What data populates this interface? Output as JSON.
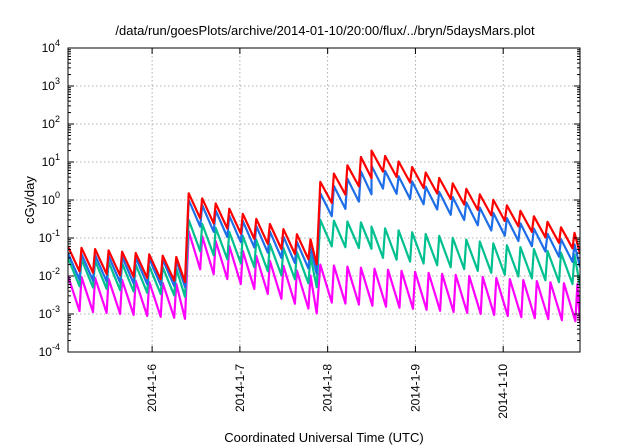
{
  "chart_data": {
    "type": "line",
    "title": "/data/run/goesPlots/archive/2014-01-10/20:00/flux/../bryn/5daysMars.plot",
    "xlabel": "Coordinated Universal Time (UTC)",
    "ylabel": "cGy/day",
    "yscale": "log",
    "ylim": [
      0.0001,
      10000
    ],
    "xlim": [
      "2014-01-05 01:00",
      "2014-01-10 21:00"
    ],
    "y_ticks": [
      {
        "base": "10",
        "exp": "-4"
      },
      {
        "base": "10",
        "exp": "-3"
      },
      {
        "base": "10",
        "exp": "-2"
      },
      {
        "base": "10",
        "exp": "-1"
      },
      {
        "base": "10",
        "exp": "0"
      },
      {
        "base": "10",
        "exp": "1"
      },
      {
        "base": "10",
        "exp": "2"
      },
      {
        "base": "10",
        "exp": "3"
      },
      {
        "base": "10",
        "exp": "4"
      }
    ],
    "x_ticks": [
      {
        "label": "2014-1-6",
        "time": "2014-01-06 00:00"
      },
      {
        "label": "2014-1-7",
        "time": "2014-01-07 00:00"
      },
      {
        "label": "2014-1-8",
        "time": "2014-01-08 00:00"
      },
      {
        "label": "2014-1-9",
        "time": "2014-01-09 00:00"
      },
      {
        "label": "2014-1-10",
        "time": "2014-01-10 00:00"
      }
    ],
    "grid": true,
    "legend": "none",
    "oscillation_period_hours": 3.7,
    "series": [
      {
        "color": "#ff00ff",
        "segments": [
          {
            "from": "2014-01-05 01:00",
            "to": "2014-01-06 09:00",
            "peak_start": 0.01,
            "peak_end": 0.006,
            "trough_ratio": 0.12
          },
          {
            "from": "2014-01-06 10:00",
            "to": "2014-01-07 21:00",
            "peak_start": 0.15,
            "peak_end": 0.009,
            "trough_ratio": 0.1
          },
          {
            "from": "2014-01-07 22:00",
            "to": "2014-01-10 21:00",
            "peak_start": 0.02,
            "peak_end": 0.006,
            "trough_ratio": 0.1
          }
        ]
      },
      {
        "color": "#00c090",
        "segments": [
          {
            "from": "2014-01-05 01:00",
            "to": "2014-01-06 09:00",
            "peak_start": 0.03,
            "peak_end": 0.015,
            "trough_ratio": 0.18
          },
          {
            "from": "2014-01-06 10:00",
            "to": "2014-01-07 21:00",
            "peak_start": 0.3,
            "peak_end": 0.03,
            "trough_ratio": 0.15
          },
          {
            "from": "2014-01-07 22:00",
            "to": "2014-01-08 12:00",
            "peak_start": 0.3,
            "peak_end": 0.25,
            "trough_ratio": 0.2
          },
          {
            "from": "2014-01-08 12:00",
            "to": "2014-01-10 21:00",
            "peak_start": 0.2,
            "peak_end": 0.035,
            "trough_ratio": 0.15
          }
        ]
      },
      {
        "color": "#1e6ee8",
        "segments": [
          {
            "from": "2014-01-05 01:00",
            "to": "2014-01-06 09:00",
            "peak_start": 0.04,
            "peak_end": 0.025,
            "trough_ratio": 0.2
          },
          {
            "from": "2014-01-06 10:00",
            "to": "2014-01-07 21:00",
            "peak_start": 1.0,
            "peak_end": 0.05,
            "trough_ratio": 0.2
          },
          {
            "from": "2014-01-07 22:00",
            "to": "2014-01-08 12:00",
            "peak_start": 1.5,
            "peak_end": 8,
            "trough_ratio": 0.25
          },
          {
            "from": "2014-01-08 12:00",
            "to": "2014-01-10 21:00",
            "peak_start": 8,
            "peak_end": 0.06,
            "trough_ratio": 0.25
          }
        ]
      },
      {
        "color": "#ff0000",
        "segments": [
          {
            "from": "2014-01-05 01:00",
            "to": "2014-01-06 09:00",
            "peak_start": 0.06,
            "peak_end": 0.03,
            "trough_ratio": 0.22
          },
          {
            "from": "2014-01-06 10:00",
            "to": "2014-01-07 21:00",
            "peak_start": 1.5,
            "peak_end": 0.08,
            "trough_ratio": 0.22
          },
          {
            "from": "2014-01-07 22:00",
            "to": "2014-01-08 12:00",
            "peak_start": 3,
            "peak_end": 20,
            "trough_ratio": 0.28
          },
          {
            "from": "2014-01-08 12:00",
            "to": "2014-01-10 21:00",
            "peak_start": 20,
            "peak_end": 0.12,
            "trough_ratio": 0.28
          }
        ]
      }
    ]
  }
}
